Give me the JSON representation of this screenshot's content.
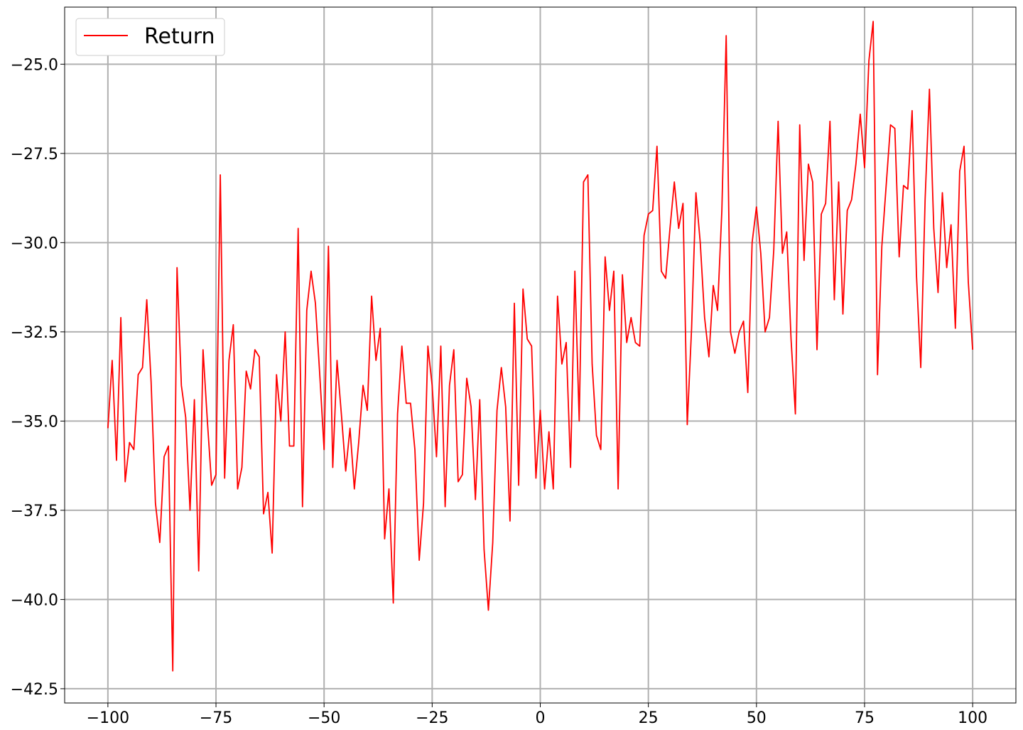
{
  "chart_data": {
    "type": "line",
    "title": "",
    "xlabel": "",
    "ylabel": "",
    "xlim": [
      -110,
      110
    ],
    "ylim": [
      -42.9,
      -23.4
    ],
    "grid": true,
    "legend_position": "upper-left",
    "x_ticks": [
      -100,
      -75,
      -50,
      -25,
      0,
      25,
      50,
      75,
      100
    ],
    "x_tick_labels": [
      "−100",
      "−75",
      "−50",
      "−25",
      "0",
      "25",
      "50",
      "75",
      "100"
    ],
    "y_ticks": [
      -25.0,
      -27.5,
      -30.0,
      -32.5,
      -35.0,
      -37.5,
      -40.0,
      -42.5
    ],
    "y_tick_labels": [
      "−25.0",
      "−27.5",
      "−30.0",
      "−32.5",
      "−35.0",
      "−37.5",
      "−40.0",
      "−42.5"
    ],
    "series": [
      {
        "name": "Return",
        "color": "#ff0000",
        "x": [
          -100,
          -99,
          -98,
          -97,
          -96,
          -95,
          -94,
          -93,
          -92,
          -91,
          -90,
          -89,
          -88,
          -87,
          -86,
          -85,
          -84,
          -83,
          -82,
          -81,
          -80,
          -79,
          -78,
          -77,
          -76,
          -75,
          -74,
          -73,
          -72,
          -71,
          -70,
          -69,
          -68,
          -67,
          -66,
          -65,
          -64,
          -63,
          -62,
          -61,
          -60,
          -59,
          -58,
          -57,
          -56,
          -55,
          -54,
          -53,
          -52,
          -51,
          -50,
          -49,
          -48,
          -47,
          -46,
          -45,
          -44,
          -43,
          -42,
          -41,
          -40,
          -39,
          -38,
          -37,
          -36,
          -35,
          -34,
          -33,
          -32,
          -31,
          -30,
          -29,
          -28,
          -27,
          -26,
          -25,
          -24,
          -23,
          -22,
          -21,
          -20,
          -19,
          -18,
          -17,
          -16,
          -15,
          -14,
          -13,
          -12,
          -11,
          -10,
          -9,
          -8,
          -7,
          -6,
          -5,
          -4,
          -3,
          -2,
          -1,
          0,
          1,
          2,
          3,
          4,
          5,
          6,
          7,
          8,
          9,
          10,
          11,
          12,
          13,
          14,
          15,
          16,
          17,
          18,
          19,
          20,
          21,
          22,
          23,
          24,
          25,
          26,
          27,
          28,
          29,
          30,
          31,
          32,
          33,
          34,
          35,
          36,
          37,
          38,
          39,
          40,
          41,
          42,
          43,
          44,
          45,
          46,
          47,
          48,
          49,
          50,
          51,
          52,
          53,
          54,
          55,
          56,
          57,
          58,
          59,
          60,
          61,
          62,
          63,
          64,
          65,
          66,
          67,
          68,
          69,
          70,
          71,
          72,
          73,
          74,
          75,
          76,
          77,
          78,
          79,
          80,
          81,
          82,
          83,
          84,
          85,
          86,
          87,
          88,
          89,
          90,
          91,
          92,
          93,
          94,
          95,
          96,
          97,
          98,
          99,
          100
        ],
        "values": [
          -35.2,
          -33.3,
          -36.1,
          -32.1,
          -36.7,
          -35.6,
          -35.8,
          -33.7,
          -33.5,
          -31.6,
          -33.9,
          -37.3,
          -38.4,
          -36.0,
          -35.7,
          -42.0,
          -30.7,
          -34.0,
          -34.9,
          -37.5,
          -34.4,
          -39.2,
          -33.0,
          -35.0,
          -36.8,
          -36.5,
          -28.1,
          -36.6,
          -33.3,
          -32.3,
          -36.9,
          -36.3,
          -33.6,
          -34.1,
          -33.0,
          -33.2,
          -37.6,
          -37.0,
          -38.7,
          -33.7,
          -35.0,
          -32.5,
          -35.7,
          -35.7,
          -29.6,
          -37.4,
          -31.9,
          -30.8,
          -31.7,
          -33.7,
          -35.8,
          -30.1,
          -36.3,
          -33.3,
          -34.8,
          -36.4,
          -35.2,
          -36.9,
          -35.6,
          -34.0,
          -34.7,
          -31.5,
          -33.3,
          -32.4,
          -38.3,
          -36.9,
          -40.1,
          -34.8,
          -32.9,
          -34.5,
          -34.5,
          -35.8,
          -38.9,
          -37.3,
          -32.9,
          -34.0,
          -36.0,
          -32.9,
          -37.4,
          -34.0,
          -33.0,
          -36.7,
          -36.5,
          -33.8,
          -34.6,
          -37.2,
          -34.4,
          -38.6,
          -40.3,
          -38.4,
          -34.7,
          -33.5,
          -34.6,
          -37.8,
          -31.7,
          -36.8,
          -31.3,
          -32.7,
          -32.9,
          -36.6,
          -34.7,
          -36.9,
          -35.3,
          -36.9,
          -31.5,
          -33.4,
          -32.8,
          -36.3,
          -30.8,
          -35.0,
          -28.3,
          -28.1,
          -33.4,
          -35.4,
          -35.8,
          -30.4,
          -31.9,
          -30.8,
          -36.9,
          -30.9,
          -32.8,
          -32.1,
          -32.8,
          -32.9,
          -29.8,
          -29.2,
          -29.1,
          -27.3,
          -30.8,
          -31.0,
          -29.6,
          -28.3,
          -29.6,
          -28.9,
          -35.1,
          -32.4,
          -28.6,
          -30.0,
          -32.1,
          -33.2,
          -31.2,
          -31.9,
          -29.1,
          -24.2,
          -32.5,
          -33.1,
          -32.5,
          -32.2,
          -34.2,
          -30.0,
          -29.0,
          -30.3,
          -32.5,
          -32.1,
          -30.2,
          -26.6,
          -30.3,
          -29.7,
          -32.7,
          -34.8,
          -26.7,
          -30.5,
          -27.8,
          -28.3,
          -33.0,
          -29.2,
          -28.9,
          -26.6,
          -31.6,
          -28.3,
          -32.0,
          -29.1,
          -28.8,
          -27.8,
          -26.4,
          -27.9,
          -24.9,
          -23.8,
          -33.7,
          -30.1,
          -28.4,
          -26.7,
          -26.8,
          -30.4,
          -28.4,
          -28.5,
          -26.3,
          -30.9,
          -33.5,
          -28.8,
          -25.7,
          -29.6,
          -31.4,
          -28.6,
          -30.7,
          -29.5,
          -32.4,
          -28.0,
          -27.3,
          -31.1,
          -33.0
        ]
      }
    ]
  }
}
